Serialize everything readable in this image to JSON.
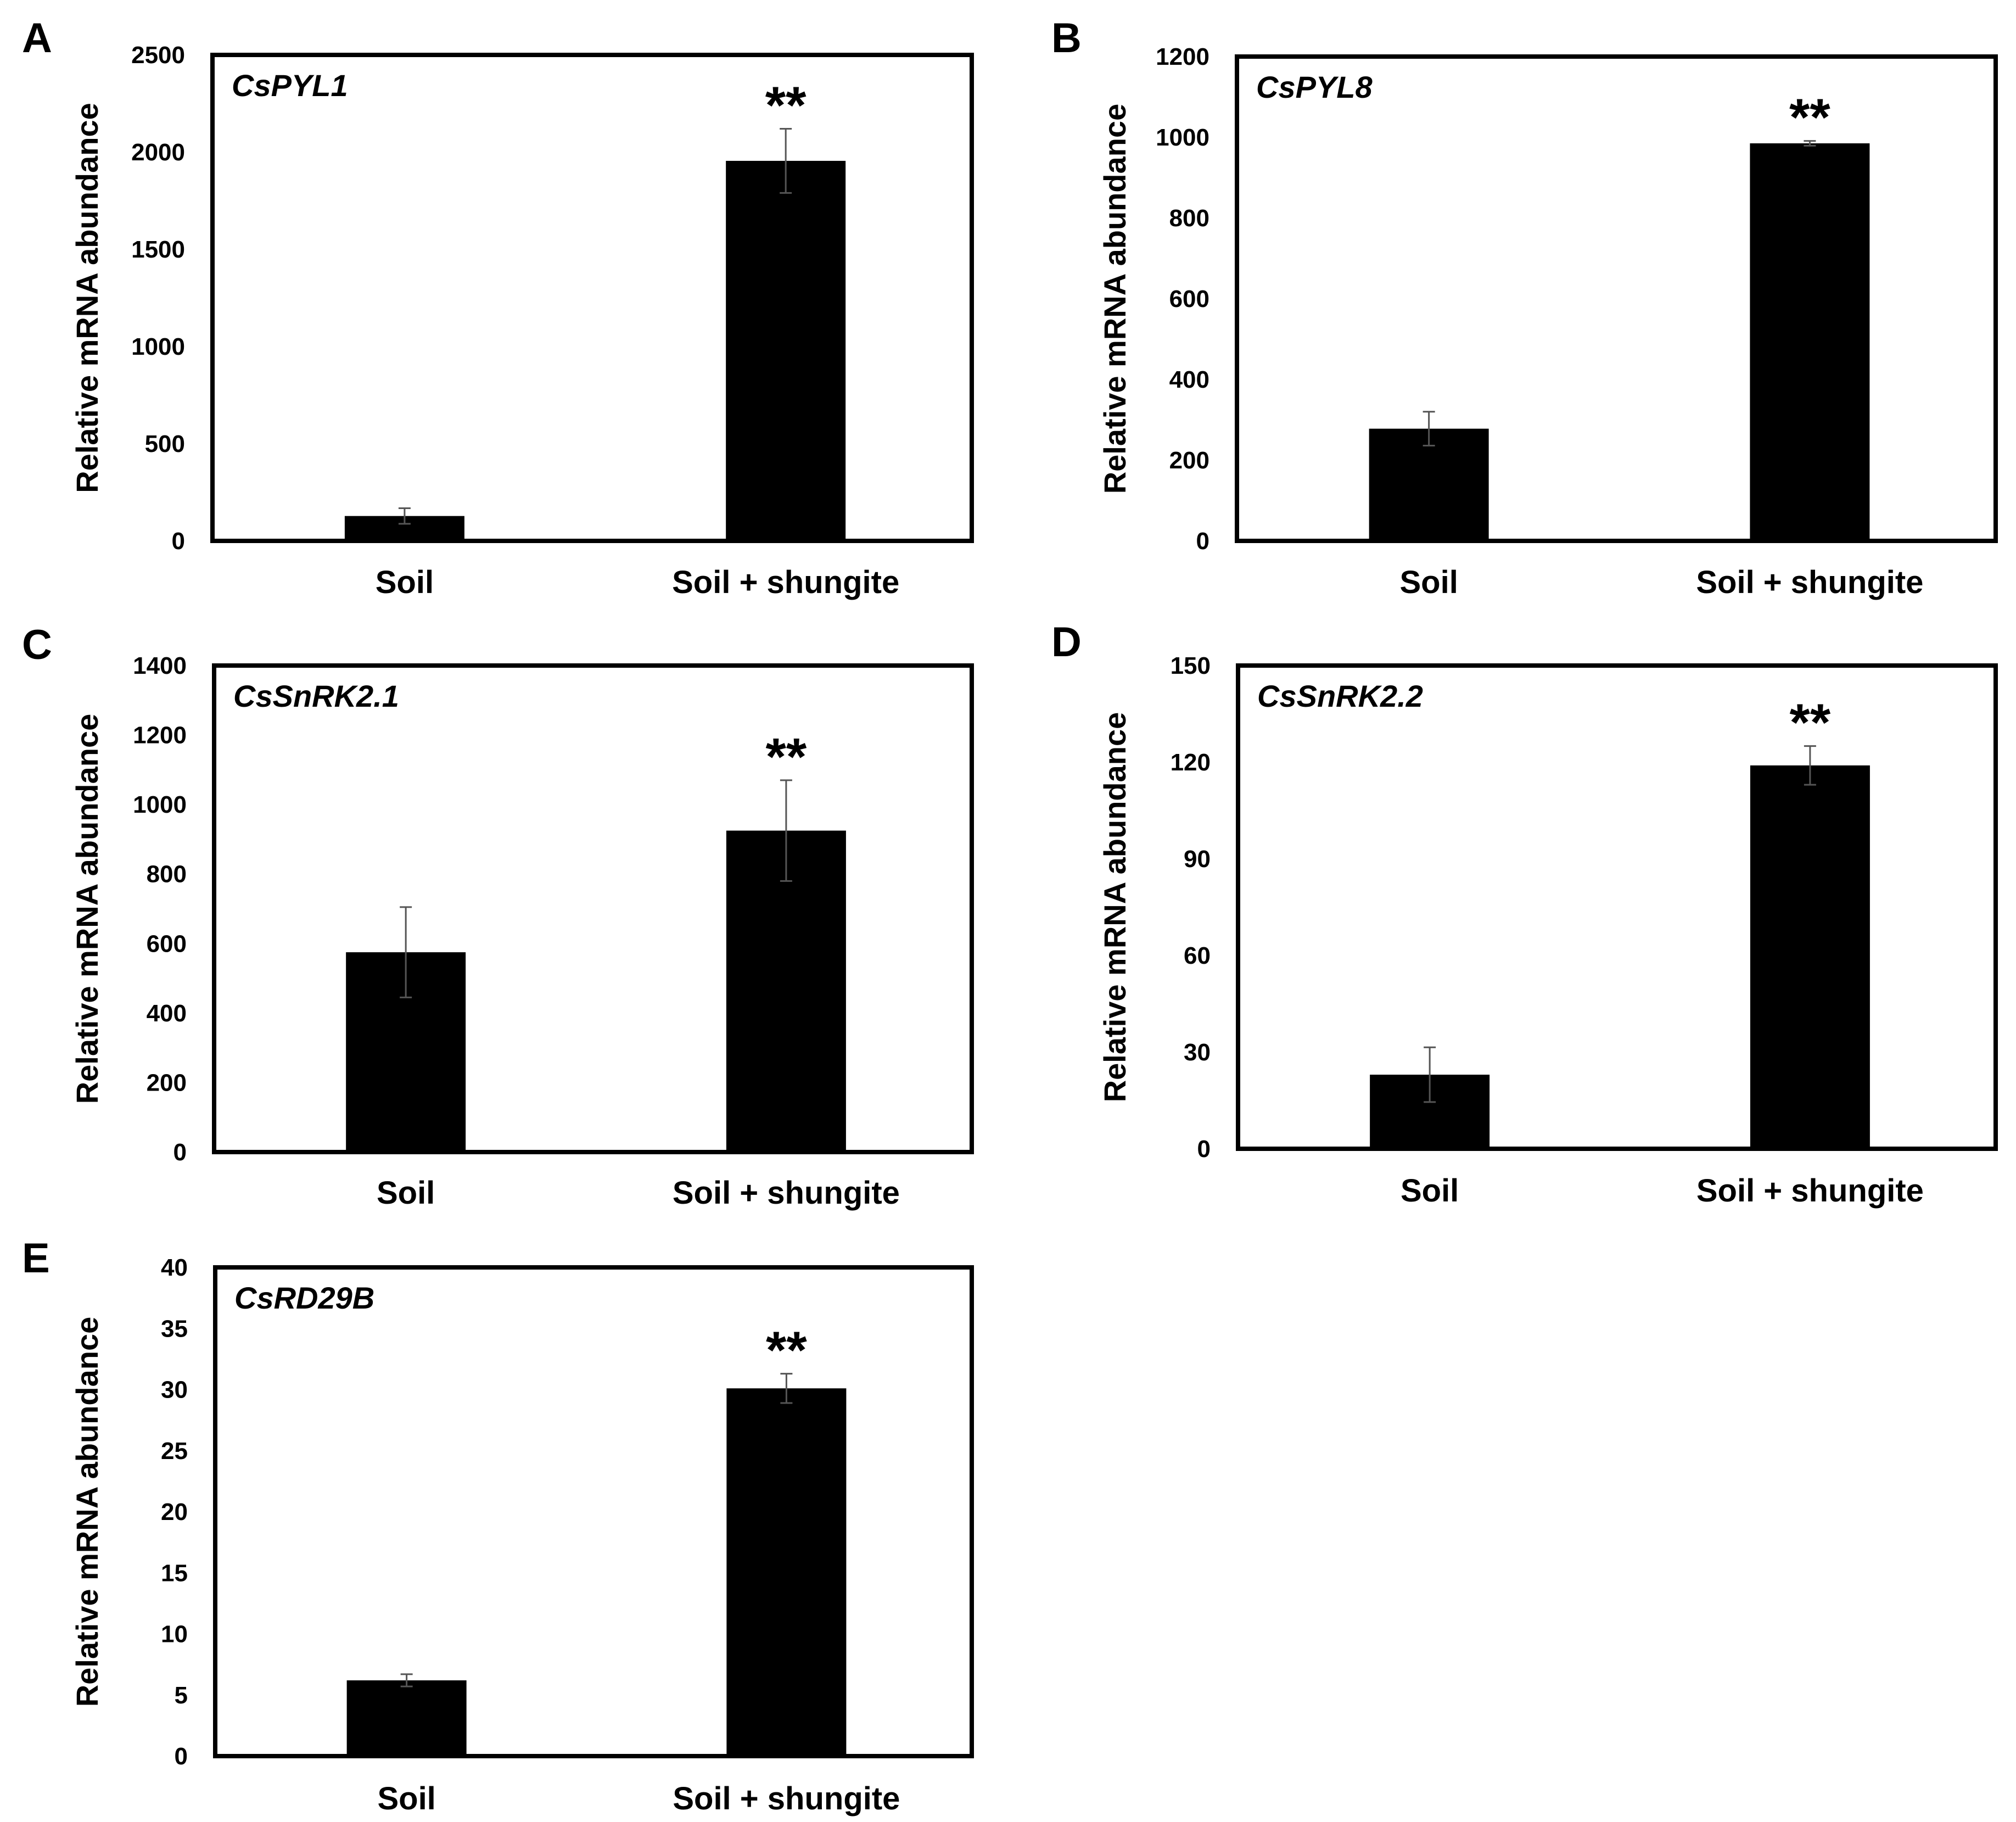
{
  "figure": {
    "background": "#ffffff",
    "bar_color": "#000000"
  },
  "chart_data": [
    {
      "panel": "A",
      "type": "bar",
      "title": "CsPYL1",
      "ylabel": "Relative mRNA abundance",
      "categories": [
        "Soil",
        "Soil + shungite"
      ],
      "values": [
        128,
        1955
      ],
      "errors": [
        40,
        165
      ],
      "annotations": [
        "",
        "**"
      ],
      "ylim": [
        0,
        2500
      ],
      "yticks": [
        0,
        500,
        1000,
        1500,
        2000,
        2500
      ]
    },
    {
      "panel": "B",
      "type": "bar",
      "title": "CsPYL8",
      "ylabel": "Relative mRNA abundance",
      "categories": [
        "Soil",
        "Soil + shungite"
      ],
      "values": [
        278,
        985
      ],
      "errors": [
        42,
        6
      ],
      "annotations": [
        "",
        "**"
      ],
      "ylim": [
        0,
        1200
      ],
      "yticks": [
        0,
        200,
        400,
        600,
        800,
        1000,
        1200
      ]
    },
    {
      "panel": "C",
      "type": "bar",
      "title": "CsSnRK2.1",
      "ylabel": "Relative mRNA abundance",
      "categories": [
        "Soil",
        "Soil + shungite"
      ],
      "values": [
        575,
        925
      ],
      "errors": [
        130,
        145
      ],
      "annotations": [
        "",
        "**"
      ],
      "ylim": [
        0,
        1400
      ],
      "yticks": [
        0,
        200,
        400,
        600,
        800,
        1000,
        1200,
        1400
      ]
    },
    {
      "panel": "D",
      "type": "bar",
      "title": "CsSnRK2.2",
      "ylabel": "Relative mRNA abundance",
      "categories": [
        "Soil",
        "Soil + shungite"
      ],
      "values": [
        23,
        119
      ],
      "errors": [
        8.5,
        6
      ],
      "annotations": [
        "",
        "**"
      ],
      "ylim": [
        0,
        150
      ],
      "yticks": [
        0,
        30,
        60,
        90,
        120,
        150
      ]
    },
    {
      "panel": "E",
      "type": "bar",
      "title": "CsRD29B",
      "ylabel": "Relative mRNA abundance",
      "categories": [
        "Soil",
        "Soil + shungite"
      ],
      "values": [
        6.2,
        30.1
      ],
      "errors": [
        0.5,
        1.2
      ],
      "annotations": [
        "",
        "**"
      ],
      "ylim": [
        0,
        40
      ],
      "yticks": [
        0,
        5,
        10,
        15,
        20,
        25,
        30,
        35,
        40
      ]
    }
  ]
}
